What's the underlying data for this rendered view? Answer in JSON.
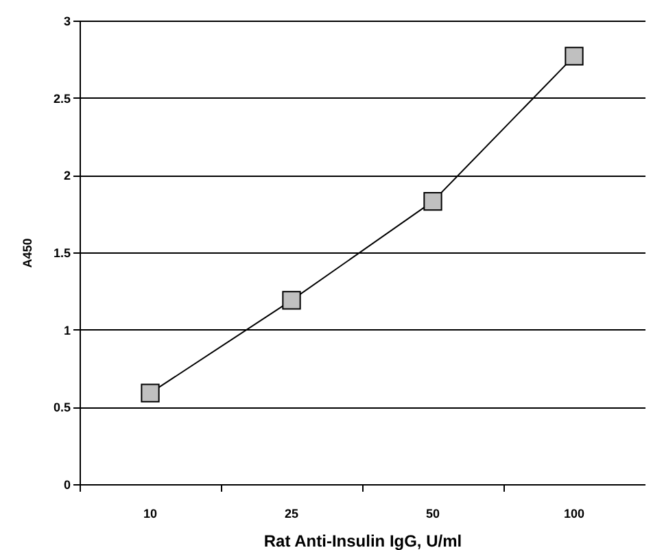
{
  "chart_data": {
    "type": "line",
    "xlabel": "Rat Anti-Insulin IgG, U/ml",
    "ylabel": "A450",
    "categories": [
      "10",
      "25",
      "50",
      "100"
    ],
    "series": [
      {
        "color": "#000000",
        "values": [
          0.59,
          1.19,
          1.83,
          2.77
        ]
      }
    ],
    "ylim": [
      0,
      3
    ],
    "yticks": [
      0,
      0.5,
      1,
      1.5,
      2,
      2.5,
      3
    ],
    "grid": "y",
    "marker": "square"
  }
}
